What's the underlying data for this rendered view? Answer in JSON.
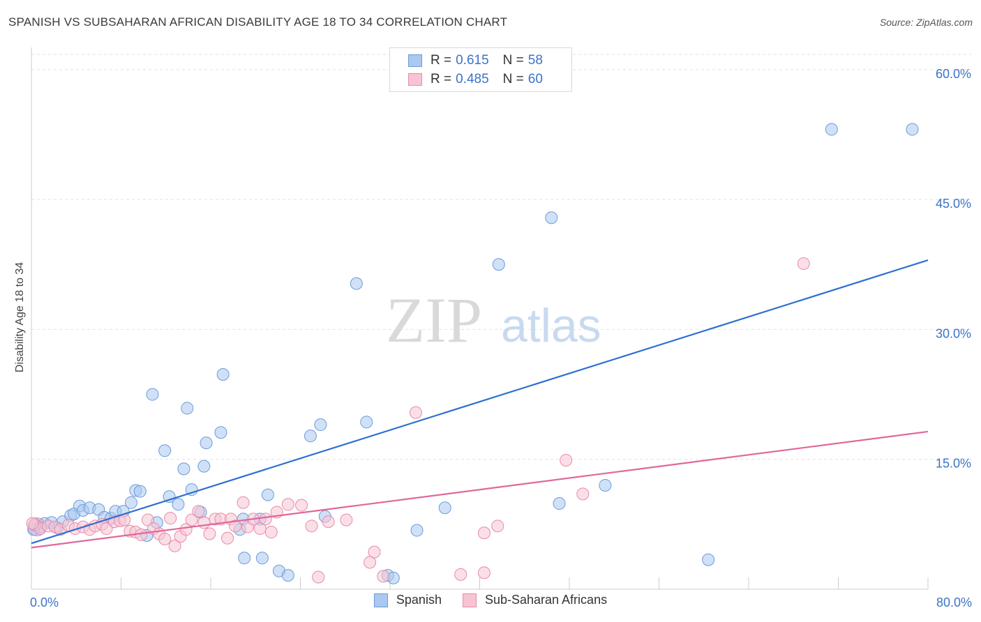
{
  "header": {
    "title": "SPANISH VS SUBSAHARAN AFRICAN DISABILITY AGE 18 TO 34 CORRELATION CHART",
    "source": "Source: ZipAtlas.com"
  },
  "stats": [
    {
      "r_label": "R =",
      "r_value": "0.615",
      "n_label": "N =",
      "n_value": "58",
      "color": "#aac8f0",
      "border": "#6b9bd8"
    },
    {
      "r_label": "R =",
      "r_value": "0.485",
      "n_label": "N =",
      "n_value": "60",
      "color": "#f8c4d4",
      "border": "#e88aa8"
    }
  ],
  "watermark": {
    "zip": "ZIP",
    "atlas": "atlas"
  },
  "legend": [
    {
      "label": "Spanish",
      "color": "#aac8f0",
      "border": "#6b9bd8"
    },
    {
      "label": "Sub-Saharan Africans",
      "color": "#f8c4d4",
      "border": "#e88aa8"
    }
  ],
  "chart_data": {
    "type": "scatter",
    "title": "SPANISH VS SUBSAHARAN AFRICAN DISABILITY AGE 18 TO 34 CORRELATION CHART",
    "xlabel": "",
    "ylabel": "Disability Age 18 to 34",
    "xlim": [
      0,
      80
    ],
    "ylim": [
      0,
      62
    ],
    "x_tick_labels": [
      "0.0%",
      "80.0%"
    ],
    "y_ticks": [
      15,
      30,
      45,
      60
    ],
    "y_tick_labels": [
      "15.0%",
      "30.0%",
      "45.0%",
      "60.0%"
    ],
    "grid": true,
    "series": [
      {
        "name": "Spanish",
        "color": "#6b9bd8",
        "fill": "#aac8f0",
        "line_color": "#2e6fd0",
        "trend": {
          "x": [
            0,
            80
          ],
          "y": [
            5.3,
            38.0
          ]
        },
        "points": [
          [
            0.3,
            7.4
          ],
          [
            0.8,
            7.2
          ],
          [
            1.2,
            7.6
          ],
          [
            1.8,
            7.7
          ],
          [
            2.3,
            7.1
          ],
          [
            2.8,
            7.8
          ],
          [
            3.5,
            8.5
          ],
          [
            3.8,
            8.7
          ],
          [
            4.3,
            9.6
          ],
          [
            4.6,
            9.1
          ],
          [
            5.2,
            9.4
          ],
          [
            6.0,
            9.2
          ],
          [
            6.5,
            8.3
          ],
          [
            7.1,
            8.2
          ],
          [
            7.5,
            9.0
          ],
          [
            8.2,
            9.0
          ],
          [
            8.9,
            10.0
          ],
          [
            9.3,
            11.4
          ],
          [
            9.7,
            11.3
          ],
          [
            10.3,
            6.2
          ],
          [
            10.8,
            22.5
          ],
          [
            11.2,
            7.7
          ],
          [
            11.9,
            16.0
          ],
          [
            12.3,
            10.7
          ],
          [
            13.1,
            9.8
          ],
          [
            13.6,
            13.9
          ],
          [
            13.9,
            20.9
          ],
          [
            14.3,
            11.5
          ],
          [
            15.1,
            8.9
          ],
          [
            15.4,
            14.2
          ],
          [
            15.6,
            16.9
          ],
          [
            16.9,
            18.1
          ],
          [
            17.1,
            24.8
          ],
          [
            18.6,
            6.9
          ],
          [
            18.9,
            8.1
          ],
          [
            19.0,
            3.6
          ],
          [
            20.4,
            8.1
          ],
          [
            20.6,
            3.6
          ],
          [
            21.1,
            10.9
          ],
          [
            22.1,
            2.1
          ],
          [
            22.9,
            1.6
          ],
          [
            24.9,
            17.7
          ],
          [
            25.8,
            19.0
          ],
          [
            26.2,
            8.4
          ],
          [
            29.0,
            35.3
          ],
          [
            29.9,
            19.3
          ],
          [
            31.8,
            1.6
          ],
          [
            32.3,
            1.3
          ],
          [
            34.4,
            6.8
          ],
          [
            36.9,
            9.4
          ],
          [
            41.7,
            37.5
          ],
          [
            46.4,
            42.9
          ],
          [
            47.1,
            9.9
          ],
          [
            51.2,
            12.0
          ],
          [
            60.4,
            3.4
          ],
          [
            71.4,
            53.1
          ],
          [
            78.6,
            53.1
          ],
          [
            0.2,
            6.9
          ]
        ]
      },
      {
        "name": "Sub-Saharan Africans",
        "color": "#e88aa8",
        "fill": "#f8c4d4",
        "line_color": "#e0679a",
        "trend": {
          "x": [
            0,
            80
          ],
          "y": [
            4.8,
            18.2
          ]
        },
        "points": [
          [
            0.3,
            7.5
          ],
          [
            0.8,
            7.0
          ],
          [
            1.5,
            7.3
          ],
          [
            2.1,
            7.2
          ],
          [
            2.6,
            6.9
          ],
          [
            3.3,
            7.4
          ],
          [
            3.9,
            7.0
          ],
          [
            4.6,
            7.2
          ],
          [
            5.2,
            6.9
          ],
          [
            5.7,
            7.3
          ],
          [
            6.3,
            7.5
          ],
          [
            6.7,
            7.0
          ],
          [
            7.4,
            7.8
          ],
          [
            7.9,
            7.9
          ],
          [
            8.3,
            8.0
          ],
          [
            8.8,
            6.7
          ],
          [
            9.3,
            6.6
          ],
          [
            9.8,
            6.3
          ],
          [
            10.4,
            8.0
          ],
          [
            10.9,
            7.0
          ],
          [
            11.4,
            6.4
          ],
          [
            11.9,
            5.8
          ],
          [
            12.4,
            8.2
          ],
          [
            12.8,
            5.0
          ],
          [
            13.3,
            6.1
          ],
          [
            13.8,
            6.9
          ],
          [
            14.3,
            8.0
          ],
          [
            14.9,
            9.0
          ],
          [
            15.4,
            7.7
          ],
          [
            15.9,
            6.4
          ],
          [
            16.4,
            8.1
          ],
          [
            16.9,
            8.1
          ],
          [
            17.5,
            5.9
          ],
          [
            17.8,
            8.1
          ],
          [
            18.2,
            7.3
          ],
          [
            18.9,
            10.0
          ],
          [
            19.3,
            7.2
          ],
          [
            19.8,
            8.1
          ],
          [
            20.4,
            7.0
          ],
          [
            20.9,
            8.1
          ],
          [
            21.4,
            6.6
          ],
          [
            21.9,
            8.9
          ],
          [
            22.9,
            9.8
          ],
          [
            24.1,
            9.7
          ],
          [
            25.0,
            7.3
          ],
          [
            25.6,
            1.4
          ],
          [
            26.5,
            7.8
          ],
          [
            28.1,
            8.0
          ],
          [
            30.2,
            3.1
          ],
          [
            30.6,
            4.3
          ],
          [
            31.4,
            1.5
          ],
          [
            34.3,
            20.4
          ],
          [
            38.3,
            1.7
          ],
          [
            40.4,
            6.5
          ],
          [
            40.4,
            1.9
          ],
          [
            41.6,
            7.3
          ],
          [
            47.7,
            14.9
          ],
          [
            49.2,
            11.0
          ],
          [
            68.9,
            37.6
          ],
          [
            0.1,
            7.6
          ]
        ]
      }
    ]
  }
}
